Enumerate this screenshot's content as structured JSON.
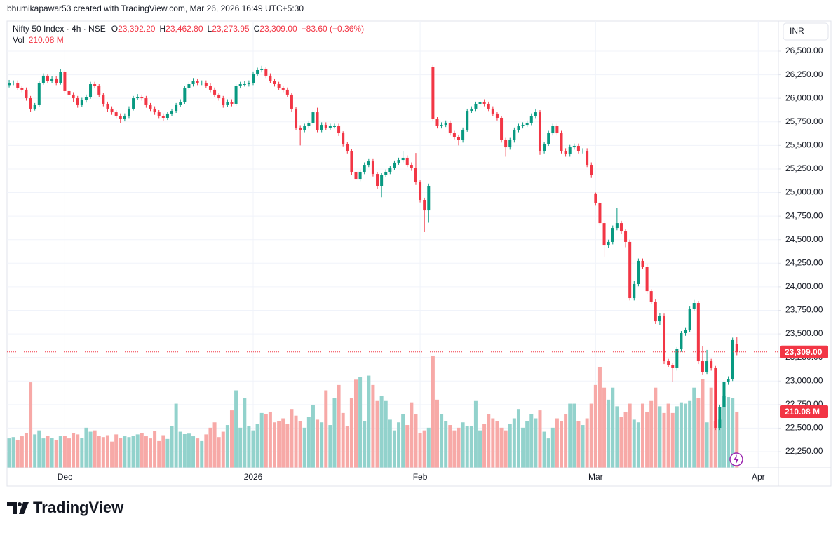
{
  "chart_data": {
    "type": "candlestick",
    "attribution": "bhumikapawar53 created with TradingView.com, Mar 26, 2026 16:49 UTC+5:30",
    "title": "Nifty 50 Index · 4h · NSE",
    "ohlc_legend": [
      {
        "key": "O",
        "value": "23,392.20"
      },
      {
        "key": "H",
        "value": "23,462.80"
      },
      {
        "key": "L",
        "value": "23,273.95"
      },
      {
        "key": "C",
        "value": "23,309.00"
      },
      {
        "value": "−83.60 (−0.36%)"
      }
    ],
    "volume_title": "Vol",
    "volume_label": "210.08 M",
    "currency": "INR",
    "last_price_label": "23,309.00",
    "brand": "TradingView",
    "up_color": "#089981",
    "down_color": "#f23645",
    "up_volume_color": "#92d2cc",
    "down_volume_color": "#f7a9a7",
    "grid": true,
    "xlim": [
      -0.5,
      179.7
    ],
    "xticks": [
      {
        "value": 13,
        "label": "Dec"
      },
      {
        "value": 57,
        "label": "2026"
      },
      {
        "value": 96,
        "label": "Feb"
      },
      {
        "value": 137,
        "label": "Mar"
      },
      {
        "value": 175,
        "label": "Apr"
      }
    ],
    "ylim": [
      22079,
      26820
    ],
    "yticks": [
      {
        "value": 22250,
        "label": "22,250.00"
      },
      {
        "value": 22500,
        "label": "22,500.00"
      },
      {
        "value": 22750,
        "label": "22,750.00"
      },
      {
        "value": 23000,
        "label": "23,000.00"
      },
      {
        "value": 23250,
        "label": "23,250.00"
      },
      {
        "value": 23500,
        "label": "23,500.00"
      },
      {
        "value": 23750,
        "label": "23,750.00"
      },
      {
        "value": 24000,
        "label": "24,000.00"
      },
      {
        "value": 24250,
        "label": "24,250.00"
      },
      {
        "value": 24500,
        "label": "24,500.00"
      },
      {
        "value": 24750,
        "label": "24,750.00"
      },
      {
        "value": 25000,
        "label": "25,000.00"
      },
      {
        "value": 25250,
        "label": "25,250.00"
      },
      {
        "value": 25500,
        "label": "25,500.00"
      },
      {
        "value": 25750,
        "label": "25,750.00"
      },
      {
        "value": 26000,
        "label": "26,000.00"
      },
      {
        "value": 26250,
        "label": "26,250.00"
      },
      {
        "value": 26500,
        "label": "26,500.00"
      }
    ],
    "y2lim": [
      0,
      1672
    ],
    "open": [
      26140,
      26165,
      26165,
      26113,
      26091,
      26001,
      25890,
      25927,
      26165,
      26240,
      26187,
      26210,
      26165,
      26277,
      26076,
      26039,
      26001,
      25927,
      25979,
      26016,
      26150,
      26128,
      26039,
      25942,
      25890,
      25852,
      25815,
      25778,
      25815,
      25890,
      26001,
      26016,
      26001,
      25927,
      25890,
      25852,
      25815,
      25793,
      25838,
      25867,
      25927,
      25964,
      26113,
      26150,
      26187,
      26165,
      26165,
      26135,
      26091,
      26039,
      26001,
      25927,
      25964,
      25942,
      26128,
      26150,
      26150,
      26165,
      26262,
      26299,
      26314,
      26240,
      26187,
      26150,
      26113,
      26091,
      26039,
      25890,
      25689,
      25666,
      25704,
      25741,
      25852,
      25666,
      25718,
      25689,
      25704,
      25704,
      25629,
      25517,
      25443,
      25220,
      25145,
      25220,
      25294,
      25331,
      25197,
      25071,
      25183,
      25220,
      25257,
      25317,
      25346,
      25369,
      25294,
      25257,
      25108,
      24922,
      24810,
      26330,
      25778,
      25704,
      25718,
      25741,
      25629,
      25592,
      25555,
      25666,
      25867,
      25890,
      25942,
      25957,
      25942,
      25890,
      25838,
      25793,
      25555,
      25480,
      25555,
      25666,
      25704,
      25718,
      25741,
      25815,
      25852,
      25443,
      25517,
      25629,
      25704,
      25629,
      25443,
      25406,
      25480,
      25495,
      25443,
      25443,
      25294,
      24990,
      24885,
      24676,
      24438,
      24476,
      24624,
      24676,
      24587,
      24476,
      23880,
      24029,
      24275,
      24215,
      23954,
      23843,
      23634,
      23694,
      23210,
      23173,
      23136,
      23337,
      23508,
      23545,
      23768,
      23828,
      23210,
      23098,
      23210,
      23136,
      22503,
      22726,
      22987,
      23024,
      23392.2
    ],
    "high": [
      26195,
      26190,
      26190,
      26135,
      26115,
      26025,
      25950,
      26185,
      26265,
      26260,
      26235,
      26235,
      26310,
      26295,
      26100,
      26065,
      26025,
      26005,
      26040,
      26175,
      26175,
      26150,
      26060,
      25965,
      25915,
      25875,
      25840,
      25840,
      25915,
      26025,
      26045,
      26040,
      26025,
      25950,
      25915,
      25875,
      25840,
      25860,
      25890,
      25950,
      25990,
      26135,
      26175,
      26215,
      26210,
      26190,
      26190,
      26160,
      26115,
      26060,
      26025,
      25990,
      25990,
      26150,
      26175,
      26180,
      26190,
      26285,
      26325,
      26345,
      26335,
      26265,
      26210,
      26175,
      26135,
      26115,
      26060,
      25910,
      25715,
      25730,
      25765,
      25875,
      25900,
      25745,
      25745,
      25730,
      25730,
      25730,
      25650,
      25540,
      25465,
      25245,
      25245,
      25320,
      25355,
      25355,
      25220,
      25205,
      25245,
      25280,
      25340,
      25370,
      25440,
      25395,
      25320,
      25420,
      25130,
      24945,
      25095,
      26360,
      25800,
      25745,
      25765,
      25765,
      25655,
      25615,
      25690,
      25890,
      25915,
      25965,
      25985,
      25990,
      25965,
      25915,
      25860,
      25815,
      25580,
      25580,
      25690,
      25730,
      25745,
      25765,
      25840,
      25890,
      25875,
      25540,
      25655,
      25730,
      25730,
      25655,
      25470,
      25505,
      25520,
      25520,
      25470,
      25470,
      25320,
      25000,
      24900,
      24700,
      24500,
      24650,
      24840,
      24700,
      24610,
      24500,
      24060,
      24300,
      24300,
      24240,
      23975,
      23865,
      23720,
      23715,
      23235,
      23195,
      23360,
      23530,
      23570,
      23790,
      23860,
      23850,
      23370,
      23330,
      23235,
      23160,
      22750,
      23010,
      23050,
      23460,
      23462.8
    ],
    "low": [
      26115,
      26140,
      26090,
      26065,
      25975,
      25860,
      25870,
      25905,
      26145,
      26165,
      26165,
      26140,
      26145,
      26050,
      26010,
      25960,
      25900,
      25905,
      25955,
      25995,
      26105,
      26015,
      25915,
      25860,
      25825,
      25790,
      25740,
      25755,
      25790,
      25870,
      25980,
      25975,
      25900,
      25865,
      25825,
      25790,
      25760,
      25770,
      25815,
      25845,
      25905,
      25940,
      26090,
      26125,
      26140,
      26140,
      26110,
      26065,
      26015,
      25975,
      25900,
      25905,
      25915,
      25920,
      26105,
      26125,
      26125,
      26140,
      26240,
      26275,
      26215,
      26160,
      26125,
      26090,
      26065,
      26015,
      25860,
      25660,
      25500,
      25640,
      25680,
      25720,
      25640,
      25640,
      25665,
      25665,
      25680,
      25600,
      25490,
      25415,
      25190,
      24920,
      25120,
      25195,
      25270,
      25170,
      25040,
      24950,
      25160,
      25195,
      25235,
      25295,
      25320,
      25270,
      25230,
      25080,
      24895,
      24580,
      24680,
      25755,
      25680,
      25680,
      25695,
      25605,
      25565,
      25500,
      25530,
      25645,
      25845,
      25865,
      25915,
      25915,
      25865,
      25815,
      25765,
      25530,
      25380,
      25455,
      25530,
      25640,
      25680,
      25695,
      25715,
      25790,
      25400,
      25415,
      25495,
      25605,
      25605,
      25415,
      25380,
      25380,
      25455,
      25415,
      25415,
      25270,
      25155,
      24860,
      24650,
      24320,
      24410,
      24450,
      24600,
      24560,
      24420,
      23855,
      23855,
      24005,
      24190,
      23925,
      23815,
      23605,
      23590,
      23180,
      23150,
      22990,
      23110,
      23310,
      23480,
      23520,
      23745,
      23180,
      23070,
      23075,
      23110,
      22480,
      22480,
      22700,
      22960,
      23000,
      23273.95
    ],
    "close": [
      26165,
      26165,
      26113,
      26091,
      26001,
      25890,
      25927,
      26165,
      26240,
      26187,
      26210,
      26165,
      26277,
      26076,
      26039,
      26001,
      25927,
      25979,
      26016,
      26150,
      26128,
      26039,
      25942,
      25890,
      25852,
      25815,
      25778,
      25815,
      25890,
      26001,
      26016,
      26001,
      25927,
      25890,
      25852,
      25815,
      25793,
      25838,
      25867,
      25927,
      25964,
      26113,
      26150,
      26187,
      26165,
      26165,
      26135,
      26091,
      26039,
      26001,
      25927,
      25964,
      25942,
      26128,
      26150,
      26150,
      26165,
      26262,
      26299,
      26314,
      26240,
      26187,
      26150,
      26113,
      26091,
      26039,
      25890,
      25689,
      25666,
      25704,
      25741,
      25852,
      25666,
      25718,
      25689,
      25704,
      25704,
      25629,
      25517,
      25443,
      25220,
      25145,
      25220,
      25294,
      25331,
      25197,
      25071,
      25183,
      25220,
      25257,
      25317,
      25346,
      25369,
      25294,
      25257,
      25108,
      24922,
      24810,
      25071,
      25778,
      25704,
      25718,
      25741,
      25629,
      25592,
      25555,
      25666,
      25867,
      25890,
      25942,
      25957,
      25942,
      25890,
      25838,
      25793,
      25555,
      25480,
      25555,
      25666,
      25704,
      25718,
      25741,
      25815,
      25852,
      25443,
      25517,
      25629,
      25704,
      25629,
      25443,
      25406,
      25480,
      25495,
      25443,
      25443,
      25294,
      25183,
      24885,
      24676,
      24438,
      24476,
      24624,
      24676,
      24587,
      24476,
      23880,
      24029,
      24275,
      24215,
      23954,
      23843,
      23634,
      23694,
      23210,
      23173,
      23136,
      23337,
      23508,
      23545,
      23768,
      23828,
      23210,
      23098,
      23210,
      23136,
      22503,
      22726,
      22987,
      23024,
      23434,
      23309
    ],
    "volume": [
      110,
      115,
      105,
      118,
      130,
      320,
      125,
      140,
      110,
      120,
      112,
      105,
      118,
      120,
      110,
      130,
      125,
      112,
      150,
      135,
      140,
      120,
      115,
      122,
      98,
      125,
      112,
      118,
      115,
      120,
      125,
      130,
      118,
      110,
      138,
      100,
      122,
      108,
      155,
      240,
      135,
      126,
      128,
      118,
      110,
      100,
      125,
      150,
      170,
      115,
      135,
      160,
      215,
      290,
      150,
      260,
      155,
      140,
      165,
      205,
      200,
      210,
      170,
      175,
      185,
      165,
      220,
      195,
      175,
      150,
      190,
      235,
      180,
      170,
      290,
      160,
      260,
      310,
      205,
      155,
      260,
      330,
      340,
      175,
      345,
      310,
      250,
      270,
      250,
      180,
      140,
      170,
      200,
      160,
      245,
      200,
      130,
      140,
      150,
      420,
      255,
      200,
      175,
      160,
      140,
      150,
      170,
      155,
      155,
      250,
      140,
      165,
      200,
      185,
      175,
      150,
      140,
      165,
      185,
      220,
      150,
      175,
      200,
      185,
      215,
      135,
      110,
      150,
      185,
      175,
      200,
      240,
      240,
      175,
      160,
      185,
      240,
      310,
      378,
      300,
      255,
      300,
      230,
      190,
      210,
      240,
      180,
      170,
      240,
      210,
      250,
      300,
      230,
      205,
      240,
      205,
      230,
      245,
      240,
      250,
      300,
      260,
      333,
      170,
      300,
      175,
      180,
      270,
      265,
      260,
      210.08
    ]
  }
}
